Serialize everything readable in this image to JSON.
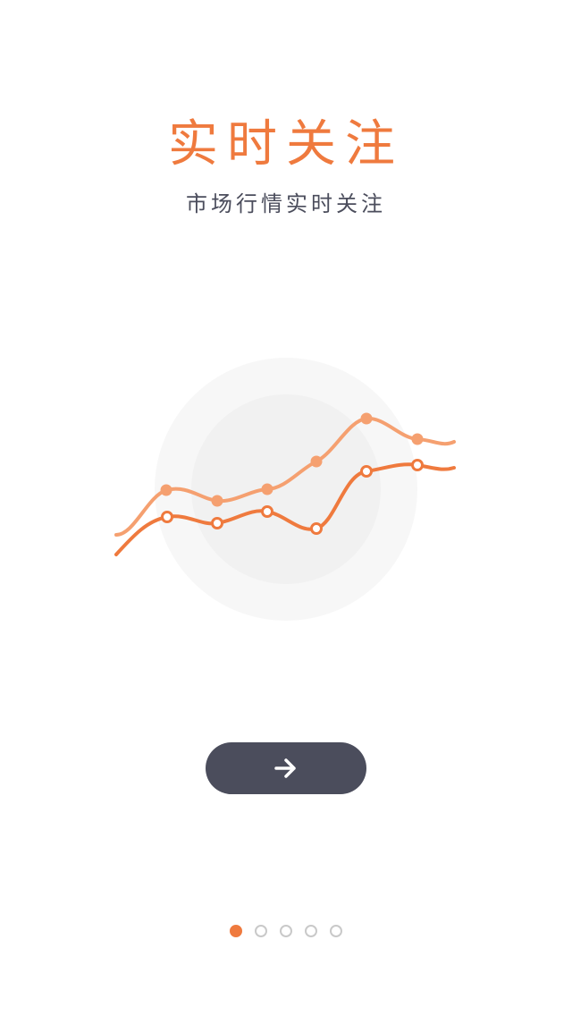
{
  "onboarding": {
    "title": "实时关注",
    "subtitle": "市场行情实时关注",
    "page_count": 5,
    "current_page": 1
  },
  "colors": {
    "accent": "#ef7a3e",
    "accent_light": "#f5a070",
    "button_bg": "#4b4d5c",
    "text_dark": "#4b4d5c",
    "circle_outer": "#f7f7f7",
    "circle_inner": "#f1f1f1",
    "dot_inactive": "#c9c9c9"
  },
  "icons": {
    "next_button": "arrow-right-icon"
  }
}
